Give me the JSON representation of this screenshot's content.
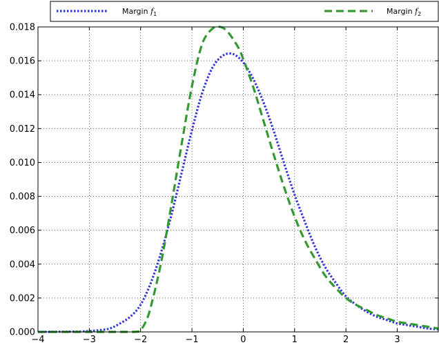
{
  "chart_data": {
    "type": "line",
    "xlim": [
      -4,
      3.8
    ],
    "ylim": [
      0,
      0.018
    ],
    "xticks": [
      -4,
      -3,
      -2,
      -1,
      0,
      1,
      2,
      3
    ],
    "xtick_labels": [
      "−4",
      "−3",
      "−2",
      "−1",
      "0",
      "1",
      "2",
      "3"
    ],
    "yticks": [
      0,
      0.002,
      0.004,
      0.006,
      0.008,
      0.01,
      0.012,
      0.014,
      0.016,
      0.018
    ],
    "ytick_labels": [
      "0.000",
      "0.002",
      "0.004",
      "0.006",
      "0.008",
      "0.010",
      "0.012",
      "0.014",
      "0.016",
      "0.018"
    ],
    "grid": true,
    "legend_placement": "top (above plot, spanning width)",
    "series": [
      {
        "name": "Margin f1",
        "legend_label": "Margin ",
        "legend_math": "f",
        "legend_sub": "1",
        "color": "#3333dd",
        "style": "dotted",
        "x": [
          -4.0,
          -3.5,
          -3.2,
          -3.0,
          -2.8,
          -2.6,
          -2.4,
          -2.2,
          -2.0,
          -1.8,
          -1.6,
          -1.4,
          -1.2,
          -1.0,
          -0.8,
          -0.6,
          -0.4,
          -0.2,
          0.0,
          0.2,
          0.4,
          0.6,
          0.8,
          1.0,
          1.2,
          1.4,
          1.6,
          1.8,
          2.0,
          2.2,
          2.4,
          2.6,
          2.8,
          3.0,
          3.2,
          3.4,
          3.6,
          3.8
        ],
        "y": [
          0.0,
          1e-05,
          2e-05,
          5e-05,
          0.0001,
          0.0002,
          0.0005,
          0.0009,
          0.0016,
          0.0029,
          0.0047,
          0.0069,
          0.0094,
          0.0119,
          0.0141,
          0.0156,
          0.0163,
          0.0164,
          0.0159,
          0.0149,
          0.0135,
          0.0118,
          0.0099,
          0.0081,
          0.0065,
          0.005,
          0.0038,
          0.0029,
          0.0021,
          0.0016,
          0.0012,
          0.0009,
          0.0007,
          0.0005,
          0.0004,
          0.0003,
          0.0002,
          0.00015
        ]
      },
      {
        "name": "Margin f2",
        "legend_label": "Margin ",
        "legend_math": "f",
        "legend_sub": "2",
        "color": "#339933",
        "style": "dashed",
        "x": [
          -4.0,
          -3.0,
          -2.2,
          -2.05,
          -2.0,
          -1.9,
          -1.8,
          -1.6,
          -1.4,
          -1.2,
          -1.0,
          -0.8,
          -0.6,
          -0.45,
          -0.3,
          -0.1,
          0.0,
          0.2,
          0.4,
          0.6,
          0.8,
          1.0,
          1.2,
          1.4,
          1.6,
          1.8,
          2.0,
          2.2,
          2.4,
          2.6,
          2.8,
          3.0,
          3.2,
          3.4,
          3.6,
          3.8
        ],
        "y": [
          0.0,
          0.0,
          0.0,
          2e-05,
          0.0001,
          0.0006,
          0.0015,
          0.0041,
          0.0075,
          0.0111,
          0.0145,
          0.017,
          0.0179,
          0.018,
          0.0177,
          0.0168,
          0.0161,
          0.0144,
          0.0124,
          0.0104,
          0.0085,
          0.0068,
          0.0054,
          0.0043,
          0.0033,
          0.0026,
          0.002,
          0.0016,
          0.0013,
          0.001,
          0.0008,
          0.0006,
          0.0005,
          0.0004,
          0.0003,
          0.0002
        ]
      }
    ]
  }
}
